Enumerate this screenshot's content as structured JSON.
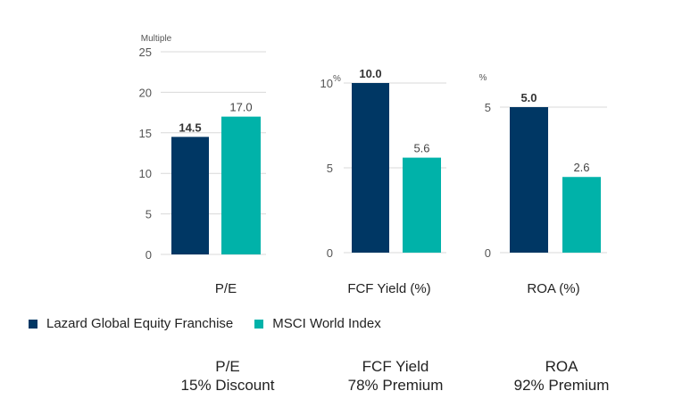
{
  "colors": {
    "lazard": "#003764",
    "msci": "#00b2a9"
  },
  "legend": [
    {
      "label": "Lazard Global Equity Franchise",
      "color": "#003764"
    },
    {
      "label": "MSCI World Index",
      "color": "#00b2a9"
    }
  ],
  "chart_data": [
    {
      "type": "bar",
      "title": "P/E",
      "xlabel": "P/E",
      "ylabel": "Multiple",
      "unit_label": "Multiple",
      "ylim": [
        0,
        25
      ],
      "yticks": [
        0,
        5,
        10,
        15,
        20,
        25
      ],
      "ytick_labels": [
        "0",
        "5",
        "10",
        "15",
        "20",
        "25"
      ],
      "grid": true,
      "series": [
        {
          "name": "Lazard Global Equity Franchise",
          "values": [
            14.5
          ],
          "labels": [
            "14.5"
          ],
          "bold": true
        },
        {
          "name": "MSCI World Index",
          "values": [
            17.0
          ],
          "labels": [
            "17.0"
          ],
          "bold": false
        }
      ]
    },
    {
      "type": "bar",
      "title": "FCF Yield (%)",
      "xlabel": "FCF Yield (%)",
      "ylabel": "%",
      "unit_label": "%",
      "ylim": [
        0,
        10
      ],
      "yticks": [
        0,
        5,
        10
      ],
      "ytick_labels": [
        "0",
        "5",
        "10"
      ],
      "grid": true,
      "series": [
        {
          "name": "Lazard Global Equity Franchise",
          "values": [
            10.0
          ],
          "labels": [
            "10.0"
          ],
          "bold": true
        },
        {
          "name": "MSCI World Index",
          "values": [
            5.6
          ],
          "labels": [
            "5.6"
          ],
          "bold": false
        }
      ]
    },
    {
      "type": "bar",
      "title": "ROA (%)",
      "xlabel": "ROA (%)",
      "ylabel": "%",
      "unit_label": "%",
      "ylim": [
        0,
        5
      ],
      "yticks": [
        0,
        5
      ],
      "ytick_labels": [
        "0",
        "5"
      ],
      "grid": true,
      "series": [
        {
          "name": "Lazard Global Equity Franchise",
          "values": [
            5.0
          ],
          "labels": [
            "5.0"
          ],
          "bold": true
        },
        {
          "name": "MSCI World Index",
          "values": [
            2.6
          ],
          "labels": [
            "2.6"
          ],
          "bold": false
        }
      ]
    }
  ],
  "summary": [
    {
      "metric": "P/E",
      "text": "15% Discount"
    },
    {
      "metric": "FCF Yield",
      "text": "78% Premium"
    },
    {
      "metric": "ROA",
      "text": "92% Premium"
    }
  ]
}
